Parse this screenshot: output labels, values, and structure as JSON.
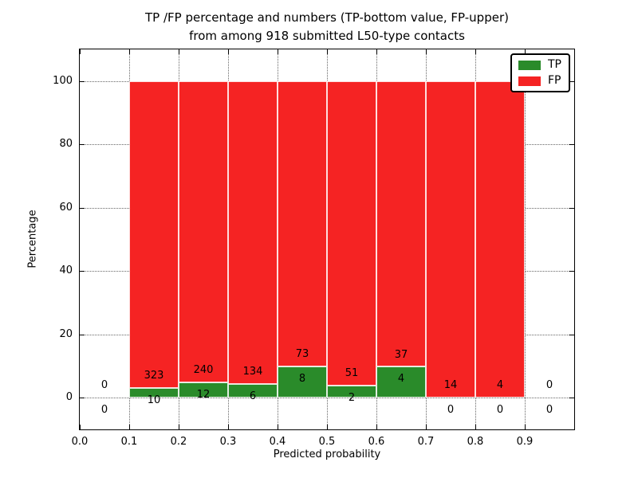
{
  "title": {
    "line1": "TP /FP percentage and numbers (TP-bottom value, FP-upper)",
    "line2": "from among 918 submitted L50-type contacts"
  },
  "axes": {
    "xlabel": "Predicted probability",
    "ylabel": "Percentage",
    "xlim": [
      0.0,
      1.0
    ],
    "ylim": [
      -10,
      110
    ],
    "xticks": [
      {
        "v": 0.0,
        "label": "0.0"
      },
      {
        "v": 0.1,
        "label": "0.1"
      },
      {
        "v": 0.2,
        "label": "0.2"
      },
      {
        "v": 0.3,
        "label": "0.3"
      },
      {
        "v": 0.4,
        "label": "0.4"
      },
      {
        "v": 0.5,
        "label": "0.5"
      },
      {
        "v": 0.6,
        "label": "0.6"
      },
      {
        "v": 0.7,
        "label": "0.7"
      },
      {
        "v": 0.8,
        "label": "0.8"
      },
      {
        "v": 0.9,
        "label": "0.9"
      }
    ],
    "yticks": [
      {
        "v": 0,
        "label": "0"
      },
      {
        "v": 20,
        "label": "20"
      },
      {
        "v": 40,
        "label": "40"
      },
      {
        "v": 60,
        "label": "60"
      },
      {
        "v": 80,
        "label": "80"
      },
      {
        "v": 100,
        "label": "100"
      }
    ],
    "grid_style": "dotted"
  },
  "legend": {
    "position": "upper-right",
    "items": [
      {
        "label": "TP",
        "color": "#2a8b2a"
      },
      {
        "label": "FP",
        "color": "#f52323"
      }
    ]
  },
  "chart_data": {
    "type": "bar",
    "subtype": "stacked-percentage-histogram",
    "title": "TP /FP percentage and numbers (TP-bottom value, FP-upper) from among 918 submitted L50-type contacts",
    "xlabel": "Predicted probability",
    "ylabel": "Percentage",
    "total_contacts": 918,
    "bin_edges": [
      0.0,
      0.1,
      0.2,
      0.3,
      0.4,
      0.5,
      0.6,
      0.7,
      0.8,
      0.9,
      1.0
    ],
    "series": [
      {
        "name": "TP",
        "color": "#2a8b2a",
        "counts": [
          0,
          10,
          12,
          6,
          8,
          2,
          4,
          0,
          0,
          0
        ]
      },
      {
        "name": "FP",
        "color": "#f52323",
        "counts": [
          0,
          323,
          240,
          134,
          73,
          51,
          37,
          14,
          4,
          0
        ]
      }
    ],
    "tp_percent_per_bin": [
      0,
      3.0,
      4.76,
      4.29,
      9.88,
      3.77,
      9.76,
      0,
      0,
      0
    ],
    "bar_label_offset_percent": 2
  }
}
